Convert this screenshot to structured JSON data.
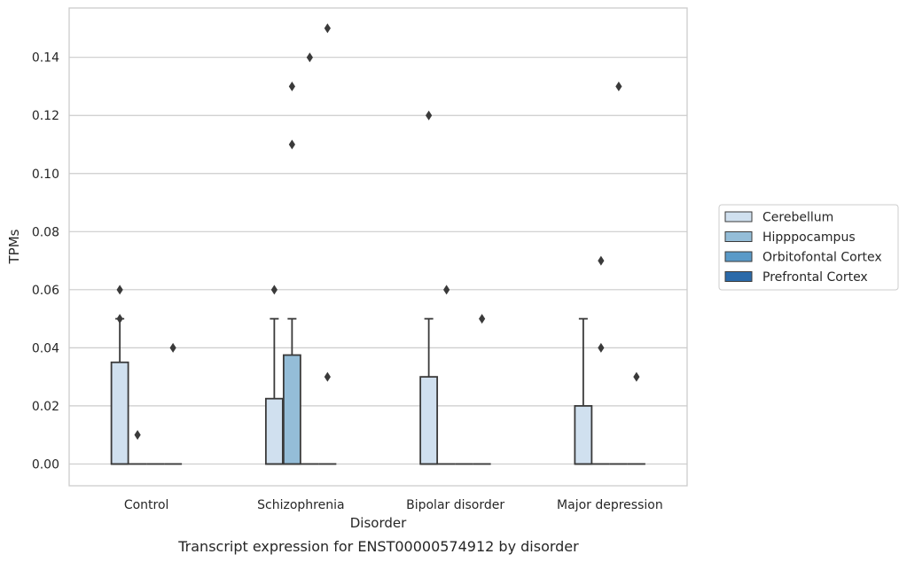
{
  "chart_data": {
    "type": "box",
    "title": "",
    "caption": "Transcript expression for ENST00000574912 by disorder",
    "xlabel": "Disorder",
    "ylabel": "TPMs",
    "ylim": [
      -0.0075,
      0.157
    ],
    "yticks": [
      0.0,
      0.02,
      0.04,
      0.06,
      0.08,
      0.1,
      0.12,
      0.14
    ],
    "ytick_labels": [
      "0.00",
      "0.02",
      "0.04",
      "0.06",
      "0.08",
      "0.10",
      "0.12",
      "0.14"
    ],
    "grid": true,
    "legend_position": "right",
    "categories": [
      "Control",
      "Schizophrenia",
      "Bipolar disorder",
      "Major depression"
    ],
    "series": [
      {
        "name": "Cerebellum",
        "color": "#d0e0ef",
        "boxes": [
          {
            "q1": 0.0,
            "median": 0.0,
            "q3": 0.035,
            "whisker_low": 0.0,
            "whisker_high": 0.05,
            "outliers": [
              0.06,
              0.05
            ]
          },
          {
            "q1": 0.0,
            "median": 0.0,
            "q3": 0.0225,
            "whisker_low": 0.0,
            "whisker_high": 0.05,
            "outliers": [
              0.06
            ]
          },
          {
            "q1": 0.0,
            "median": 0.0,
            "q3": 0.03,
            "whisker_low": 0.0,
            "whisker_high": 0.05,
            "outliers": [
              0.12
            ]
          },
          {
            "q1": 0.0,
            "median": 0.0,
            "q3": 0.02,
            "whisker_low": 0.0,
            "whisker_high": 0.05,
            "outliers": []
          }
        ]
      },
      {
        "name": "Hipppocampus",
        "color": "#94bdd8",
        "boxes": [
          {
            "q1": 0.0,
            "median": 0.0,
            "q3": 0.0,
            "whisker_low": 0.0,
            "whisker_high": 0.0,
            "outliers": [
              0.01
            ]
          },
          {
            "q1": 0.0,
            "median": 0.0,
            "q3": 0.0375,
            "whisker_low": 0.0,
            "whisker_high": 0.05,
            "outliers": [
              0.13,
              0.11
            ]
          },
          {
            "q1": 0.0,
            "median": 0.0,
            "q3": 0.0,
            "whisker_low": 0.0,
            "whisker_high": 0.0,
            "outliers": [
              0.06
            ]
          },
          {
            "q1": 0.0,
            "median": 0.0,
            "q3": 0.0,
            "whisker_low": 0.0,
            "whisker_high": 0.0,
            "outliers": [
              0.07,
              0.04
            ]
          }
        ]
      },
      {
        "name": "Orbitofontal Cortex",
        "color": "#5a9ac8",
        "boxes": [
          {
            "q1": 0.0,
            "median": 0.0,
            "q3": 0.0,
            "whisker_low": 0.0,
            "whisker_high": 0.0,
            "outliers": []
          },
          {
            "q1": 0.0,
            "median": 0.0,
            "q3": 0.0,
            "whisker_low": 0.0,
            "whisker_high": 0.0,
            "outliers": [
              0.14
            ]
          },
          {
            "q1": 0.0,
            "median": 0.0,
            "q3": 0.0,
            "whisker_low": 0.0,
            "whisker_high": 0.0,
            "outliers": []
          },
          {
            "q1": 0.0,
            "median": 0.0,
            "q3": 0.0,
            "whisker_low": 0.0,
            "whisker_high": 0.0,
            "outliers": [
              0.13
            ]
          }
        ]
      },
      {
        "name": "Prefrontal Cortex",
        "color": "#2b6aa9",
        "boxes": [
          {
            "q1": 0.0,
            "median": 0.0,
            "q3": 0.0,
            "whisker_low": 0.0,
            "whisker_high": 0.0,
            "outliers": [
              0.04
            ]
          },
          {
            "q1": 0.0,
            "median": 0.0,
            "q3": 0.0,
            "whisker_low": 0.0,
            "whisker_high": 0.0,
            "outliers": [
              0.15,
              0.03
            ]
          },
          {
            "q1": 0.0,
            "median": 0.0,
            "q3": 0.0,
            "whisker_low": 0.0,
            "whisker_high": 0.0,
            "outliers": [
              0.05
            ]
          },
          {
            "q1": 0.0,
            "median": 0.0,
            "q3": 0.0,
            "whisker_low": 0.0,
            "whisker_high": 0.0,
            "outliers": [
              0.03
            ]
          }
        ]
      }
    ]
  },
  "colors": {
    "box_edge": "#3a3a3a",
    "grid": "#cccccc",
    "frame": "#cccccc",
    "text": "#262626"
  }
}
